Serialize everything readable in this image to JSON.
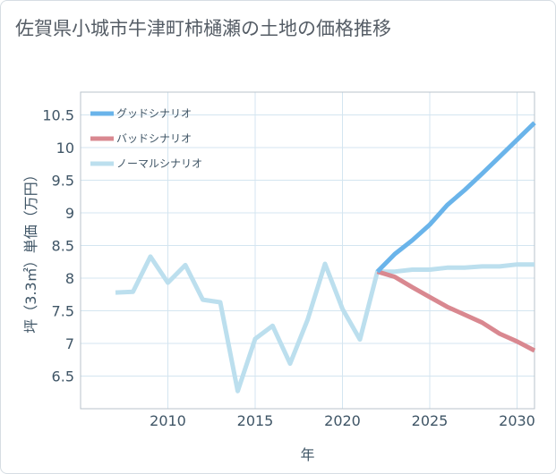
{
  "title": "佐賀県小城市牛津町柿樋瀬の土地の価格推移",
  "chart_data": {
    "type": "line",
    "title": "佐賀県小城市牛津町柿樋瀬の土地の価格推移",
    "xlabel": "年",
    "ylabel": "坪（3.3㎡）単価（万円）",
    "xlim": [
      2005,
      2031
    ],
    "ylim": [
      6.0,
      10.85
    ],
    "xticks": [
      2010,
      2015,
      2020,
      2025,
      2030
    ],
    "yticks": [
      6.5,
      7,
      7.5,
      8,
      8.5,
      9,
      9.5,
      10,
      10.5
    ],
    "grid": true,
    "legend_position": "top-left",
    "series": [
      {
        "name": "グッドシナリオ",
        "color": "#6ab4ea",
        "x": [
          2022,
          2023,
          2024,
          2025,
          2026,
          2027,
          2028,
          2029,
          2030,
          2031
        ],
        "y": [
          8.1,
          8.37,
          8.58,
          8.82,
          9.12,
          9.35,
          9.6,
          9.86,
          10.12,
          10.38
        ]
      },
      {
        "name": "バッドシナリオ",
        "color": "#d98890",
        "x": [
          2022,
          2023,
          2024,
          2025,
          2026,
          2027,
          2028,
          2029,
          2030,
          2031
        ],
        "y": [
          8.1,
          8.02,
          7.86,
          7.71,
          7.56,
          7.44,
          7.32,
          7.15,
          7.03,
          6.89
        ]
      },
      {
        "name": "ノーマルシナリオ",
        "color": "#bcdfee",
        "x": [
          2007,
          2008,
          2009,
          2010,
          2011,
          2012,
          2013,
          2014,
          2015,
          2016,
          2017,
          2018,
          2019,
          2020,
          2021,
          2022,
          2023,
          2024,
          2025,
          2026,
          2027,
          2028,
          2029,
          2030,
          2031
        ],
        "y": [
          7.78,
          7.79,
          8.33,
          7.93,
          8.2,
          7.67,
          7.63,
          6.27,
          7.07,
          7.27,
          6.69,
          7.36,
          8.22,
          7.53,
          7.06,
          8.1,
          8.1,
          8.13,
          8.13,
          8.16,
          8.16,
          8.18,
          8.18,
          8.21,
          8.21
        ]
      }
    ]
  }
}
